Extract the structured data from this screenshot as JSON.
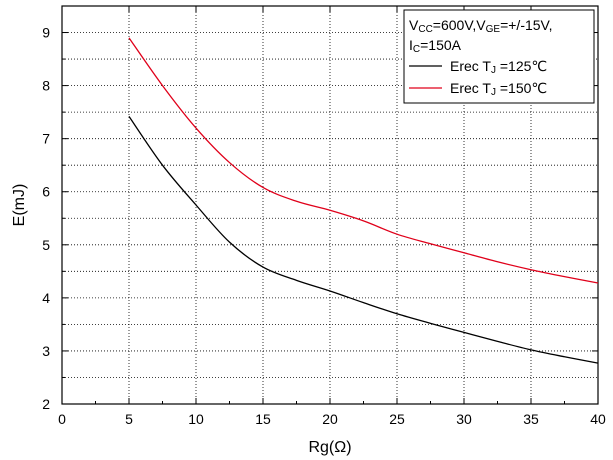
{
  "chart_data": {
    "type": "line",
    "xlabel": "Rg(Ω)",
    "ylabel": "E(mJ)",
    "xlim": [
      0,
      40
    ],
    "ylim": [
      2,
      9.5
    ],
    "xticks": [
      0,
      5,
      10,
      15,
      20,
      25,
      30,
      35,
      40
    ],
    "yticks": [
      2,
      3,
      4,
      5,
      6,
      7,
      8,
      9
    ],
    "grid": true,
    "legend": {
      "placement": "top-right",
      "conditions_line1": [
        "V",
        "CC",
        "=600V,V",
        "GE",
        "=+/-15V,"
      ],
      "conditions_line2": [
        "I",
        "C",
        "=150A"
      ]
    },
    "series": [
      {
        "name": "Erec TJ =125℃",
        "label_parts": [
          "Erec T",
          "J",
          " =125℃"
        ],
        "color": "#000000",
        "x": [
          5,
          7.5,
          10,
          12.5,
          15,
          17.5,
          20,
          22.5,
          25,
          27.5,
          30,
          32.5,
          35,
          37.5,
          40
        ],
        "y": [
          7.42,
          6.5,
          5.75,
          5.05,
          4.58,
          4.33,
          4.13,
          3.91,
          3.7,
          3.52,
          3.35,
          3.18,
          3.02,
          2.89,
          2.77
        ]
      },
      {
        "name": "Erec TJ =150℃",
        "label_parts": [
          "Erec T",
          "J",
          " =150℃"
        ],
        "color": "#e0001a",
        "x": [
          5,
          7.5,
          10,
          12.5,
          15,
          17.5,
          20,
          22.5,
          25,
          27.5,
          30,
          32.5,
          35,
          37.5,
          40
        ],
        "y": [
          8.9,
          8.0,
          7.2,
          6.55,
          6.08,
          5.82,
          5.65,
          5.45,
          5.2,
          5.02,
          4.85,
          4.68,
          4.53,
          4.4,
          4.28
        ]
      }
    ]
  }
}
